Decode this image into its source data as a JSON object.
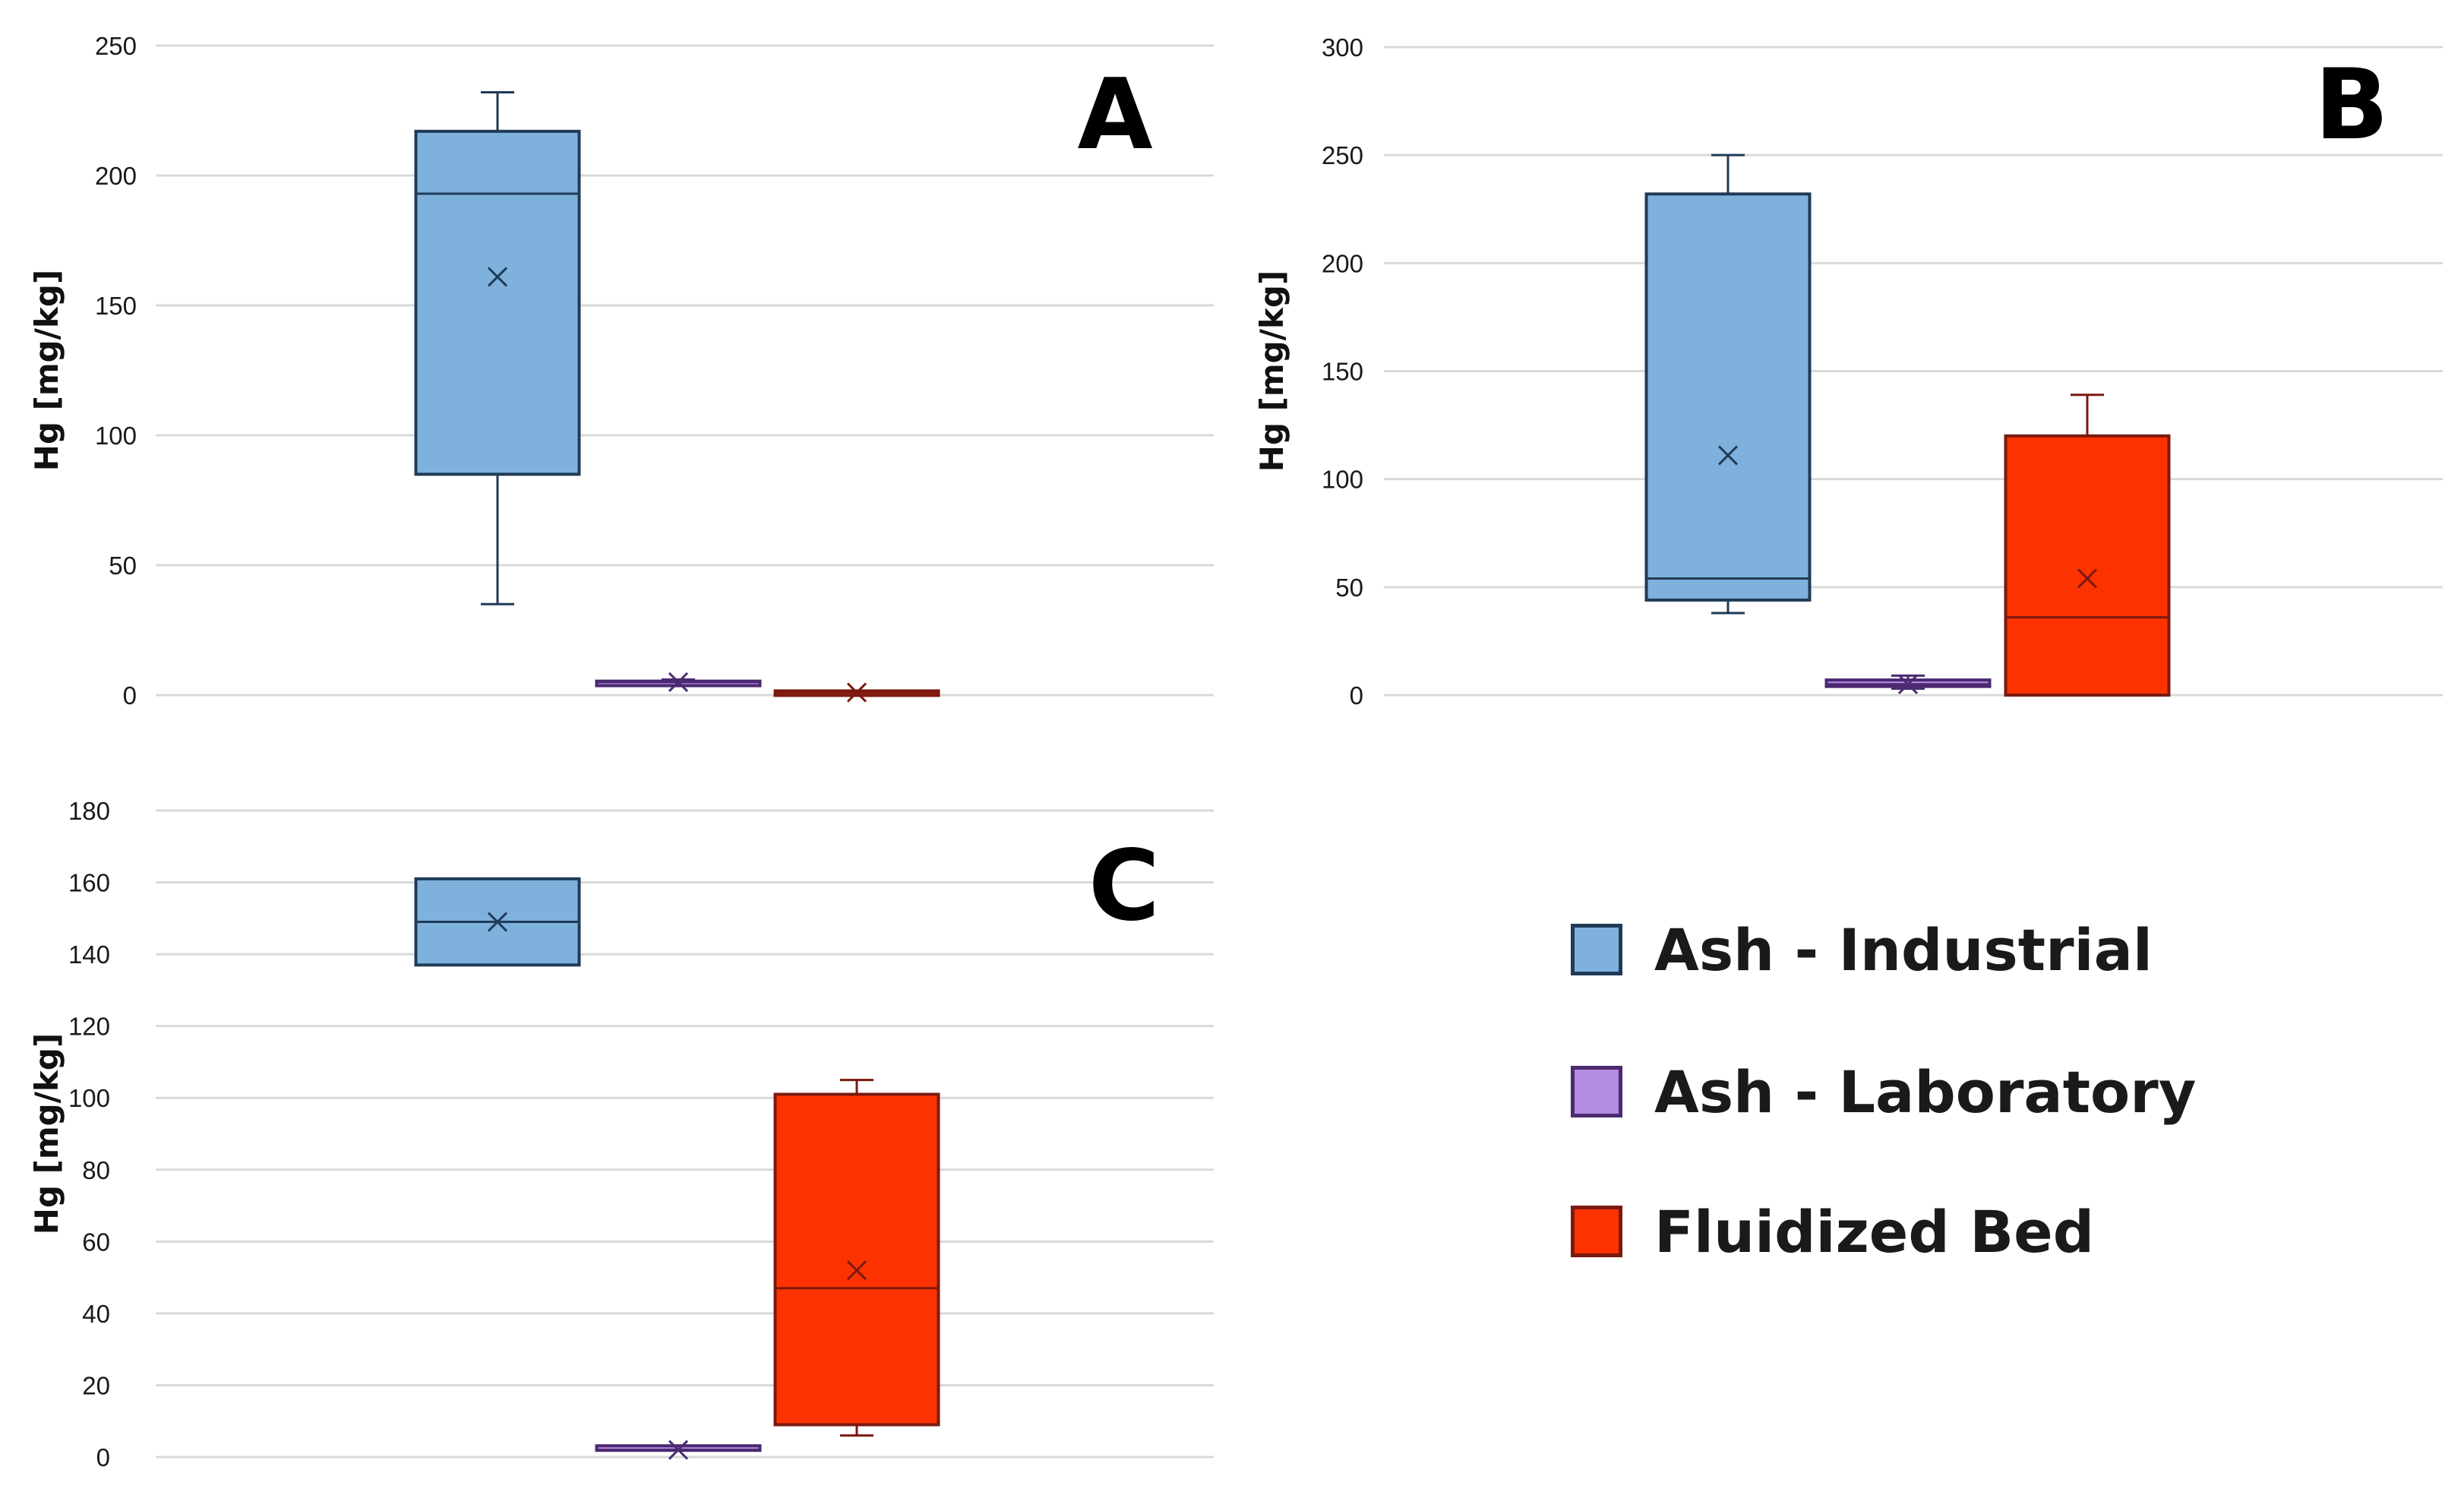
{
  "chart_data": [
    {
      "type": "box",
      "panel_label": "A",
      "ylabel": "Hg [mg/kg]",
      "ylim": [
        0,
        250
      ],
      "yticks": [
        0,
        50,
        100,
        150,
        200,
        250
      ],
      "grid": true,
      "boxes": [
        {
          "series": "Ash - Industrial",
          "min": 35,
          "q1": 85,
          "median": 193,
          "q3": 217,
          "max": 232,
          "mean": 161
        },
        {
          "series": "Ash - Laboratory",
          "min": 4,
          "q1": 4,
          "median": 5,
          "q3": 5,
          "max": 6,
          "mean": 5
        },
        {
          "series": "Fluidized Bed",
          "min": 0.5,
          "q1": 0.5,
          "median": 1,
          "q3": 1,
          "max": 1.5,
          "mean": 1
        }
      ]
    },
    {
      "type": "box",
      "panel_label": "B",
      "ylabel": "Hg [mg/kg]",
      "ylim": [
        0,
        300
      ],
      "yticks": [
        0,
        50,
        100,
        150,
        200,
        250,
        300
      ],
      "grid": true,
      "boxes": [
        {
          "series": "Ash - Industrial",
          "min": 38,
          "q1": 44,
          "median": 54,
          "q3": 232,
          "max": 250,
          "mean": 111
        },
        {
          "series": "Ash - Laboratory",
          "min": 3,
          "q1": 4,
          "median": 5,
          "q3": 7,
          "max": 9,
          "mean": 5
        },
        {
          "series": "Fluidized Bed",
          "min": 0,
          "q1": 0,
          "median": 36,
          "q3": 120,
          "max": 139,
          "mean": 54
        }
      ]
    },
    {
      "type": "box",
      "panel_label": "C",
      "ylabel": "Hg [mg/kg]",
      "ylim": [
        0,
        180
      ],
      "yticks": [
        0,
        20,
        40,
        60,
        80,
        100,
        120,
        140,
        160,
        180
      ],
      "grid": true,
      "boxes": [
        {
          "series": "Ash - Industrial",
          "min": 137,
          "q1": 137,
          "median": 149,
          "q3": 161,
          "max": 161,
          "mean": 149
        },
        {
          "series": "Ash - Laboratory",
          "min": 2,
          "q1": 2,
          "median": 2,
          "q3": 3,
          "max": 3,
          "mean": 2
        },
        {
          "series": "Fluidized Bed",
          "min": 6,
          "q1": 9,
          "median": 47,
          "q3": 101,
          "max": 105,
          "mean": 52
        }
      ]
    }
  ],
  "legend": {
    "placement": "bottom-right",
    "items": [
      {
        "label": "Ash - Industrial",
        "color": "#7fb1dd",
        "edge": "#1f3b57"
      },
      {
        "label": "Ash - Laboratory",
        "color": "#b38be0",
        "edge": "#4b2a70"
      },
      {
        "label": "Fluidized Bed",
        "color": "#fc3300",
        "edge": "#7a1a10"
      }
    ]
  }
}
